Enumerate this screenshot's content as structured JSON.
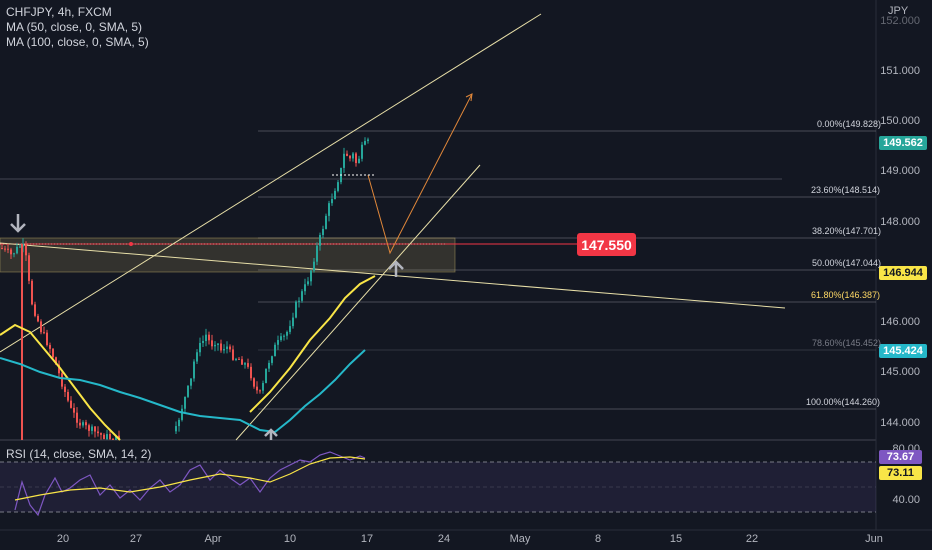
{
  "header": {
    "symbol": "CHFJPY, 4h, FXCM",
    "ma50": "MA (50, close, 0, SMA, 5)",
    "ma100": "MA (100, close, 0, SMA, 5)",
    "rsi": "RSI (14, close, SMA, 14, 2)"
  },
  "currency": "JPY",
  "y_axis": [
    "152.000",
    "151.000",
    "150.000",
    "149.000",
    "148.000",
    "146.000",
    "145.000",
    "144.000"
  ],
  "rsi_axis": [
    "80.00",
    "40.00"
  ],
  "x_axis": [
    "20",
    "27",
    "Apr",
    "10",
    "17",
    "24",
    "May",
    "8",
    "15",
    "22",
    "Jun"
  ],
  "price_tags": {
    "current": "149.562",
    "ma50": "146.944",
    "ma100": "145.424",
    "rsi": "73.67",
    "rsi_ma": "73.11",
    "target": "147.550"
  },
  "fib_levels": [
    {
      "label": "0.00%(149.828)"
    },
    {
      "label": "23.60%(148.514)"
    },
    {
      "label": "38.20%(147.701)"
    },
    {
      "label": "50.00%(147.044)"
    },
    {
      "label": "61.80%(146.387)"
    },
    {
      "label": "78.60%(145.452)"
    },
    {
      "label": "100.00%(144.260)"
    }
  ],
  "colors": {
    "background": "#131722",
    "bull": "#26a69a",
    "bear": "#ef5350",
    "ma50": "#f9e547",
    "ma100": "#25b8c9",
    "target": "#f23645",
    "rsi": "#7e57c2",
    "rsi_ma": "#f9e547",
    "trendline": "#e8dfa8",
    "projection": "#e0873a"
  }
}
